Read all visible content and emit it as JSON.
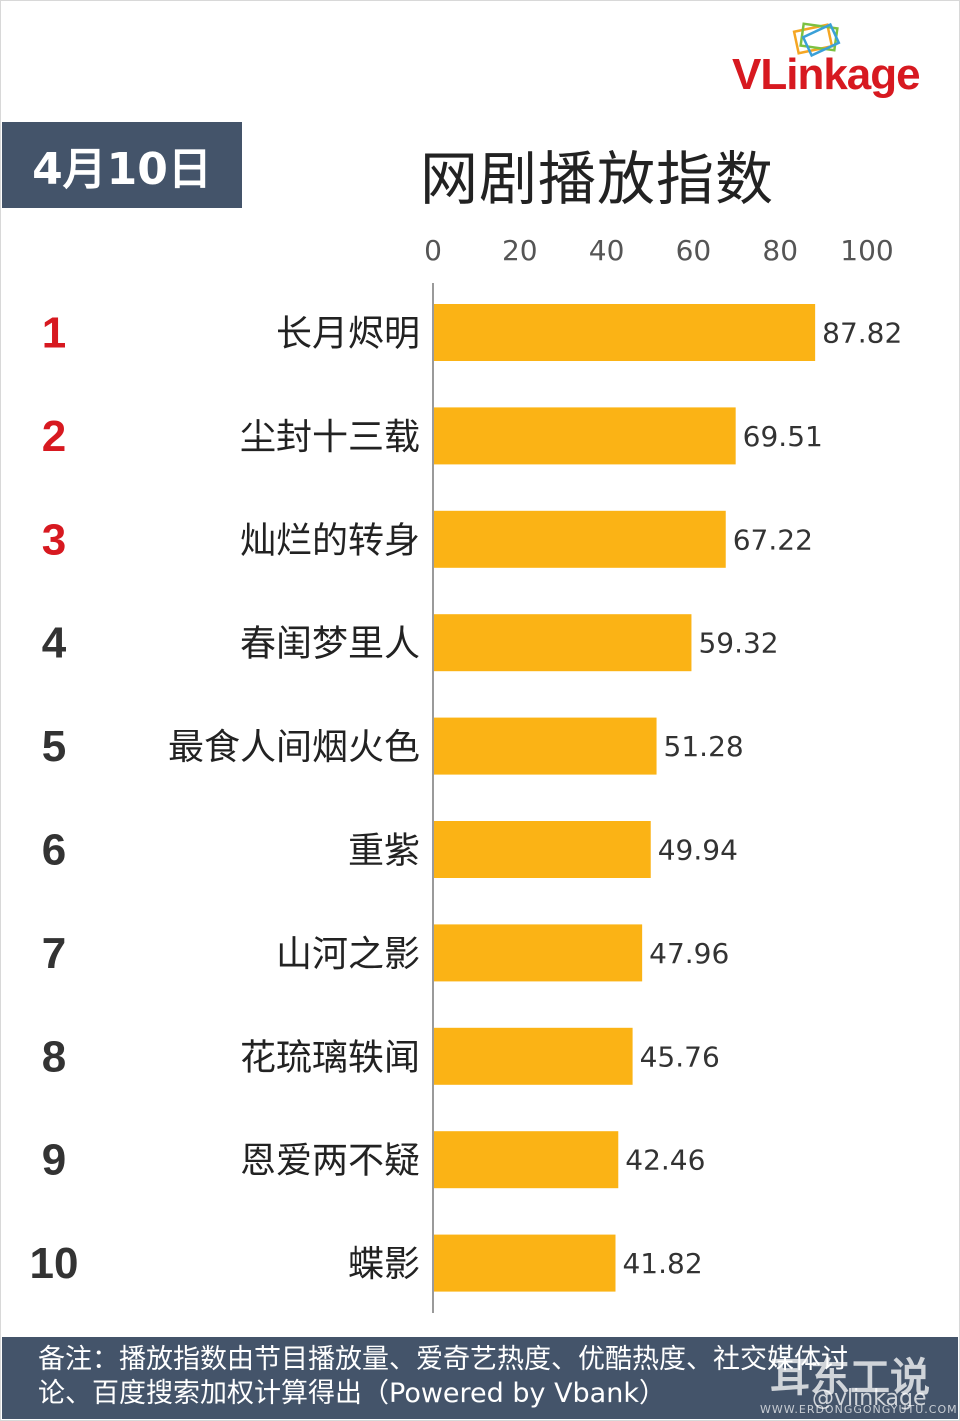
{
  "header": {
    "date": "4月10日",
    "title": "网剧播放指数",
    "logo": "VLinkage"
  },
  "colors": {
    "bar": "#fbb315",
    "badge": "#44546a",
    "rank_top": "#d71920",
    "rank_other": "#333333"
  },
  "chart_data": {
    "type": "bar",
    "orientation": "horizontal",
    "ranks": [
      "1",
      "2",
      "3",
      "4",
      "5",
      "6",
      "7",
      "8",
      "9",
      "10"
    ],
    "categories": [
      "长月烬明",
      "尘封十三载",
      "灿烂的转身",
      "春闺梦里人",
      "最食人间烟火色",
      "重紫",
      "山河之影",
      "花琉璃轶闻",
      "恩爱两不疑",
      "蝶影"
    ],
    "values": [
      87.82,
      69.51,
      67.22,
      59.32,
      51.28,
      49.94,
      47.96,
      45.76,
      42.46,
      41.82
    ],
    "value_labels": [
      "87.82",
      "69.51",
      "67.22",
      "59.32",
      "51.28",
      "49.94",
      "47.96",
      "45.76",
      "42.46",
      "41.82"
    ],
    "xlim": [
      0,
      100
    ],
    "x_ticks": [
      "0",
      "20",
      "40",
      "60",
      "80",
      "100"
    ],
    "axis_position": "top",
    "grid": false
  },
  "footer": {
    "line1": "备注：播放指数由节目播放量、爱奇艺热度、优酷热度、社交媒体讨",
    "line2": "论、百度搜索加权计算得出（Powered by Vbank）"
  },
  "watermark": {
    "main": "耳东工说",
    "handle": "@vlinkage",
    "site": "WWW.ERDONGGONGYUTU.COM"
  }
}
